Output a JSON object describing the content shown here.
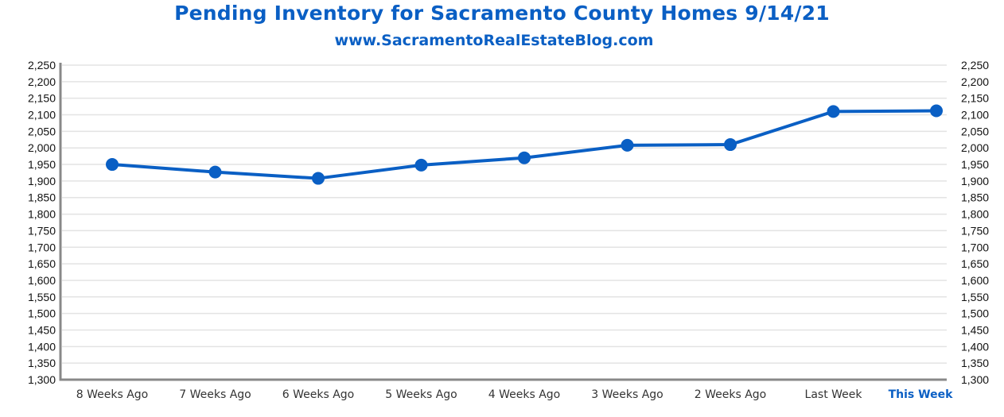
{
  "chart_data": {
    "type": "line",
    "title": "Pending Inventory for Sacramento County Homes 9/14/21",
    "subtitle": "www.SacramentoRealEstateBlog.com",
    "xlabel": "",
    "ylabel": "",
    "categories": [
      "8 Weeks Ago",
      "7 Weeks Ago",
      "6 Weeks Ago",
      "5 Weeks Ago",
      "4 Weeks Ago",
      "3 Weeks Ago",
      "2 Weeks Ago",
      "Last Week",
      "This Week"
    ],
    "highlighted_category": "This Week",
    "series": [
      {
        "name": "Pending Inventory",
        "values": [
          1950,
          1927,
          1908,
          1948,
          1970,
          2008,
          2010,
          2110,
          2112
        ],
        "color": "#0a5fc4"
      }
    ],
    "ylim": [
      1300,
      2250
    ],
    "yticks": [
      "1,300",
      "1,350",
      "1,400",
      "1,450",
      "1,500",
      "1,550",
      "1,600",
      "1,650",
      "1,700",
      "1,750",
      "1,800",
      "1,850",
      "1,900",
      "1,950",
      "2,000",
      "2,050",
      "2,100",
      "2,150",
      "2,200",
      "2,250"
    ],
    "ytick_values": [
      1300,
      1350,
      1400,
      1450,
      1500,
      1550,
      1600,
      1650,
      1700,
      1750,
      1800,
      1850,
      1900,
      1950,
      2000,
      2050,
      2100,
      2150,
      2200,
      2250
    ],
    "secondary_y_axis": true,
    "grid": true,
    "legend": "none",
    "colors": {
      "title": "#0a5fc4",
      "line": "#0a5fc4",
      "grid": "#e3e3e3",
      "axis": "#888888"
    }
  }
}
